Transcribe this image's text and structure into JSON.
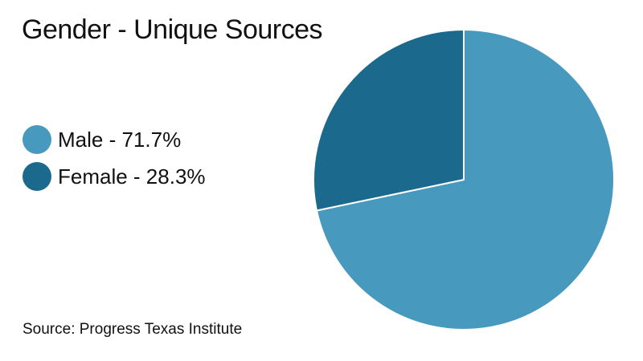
{
  "chart_data": {
    "type": "pie",
    "title": "Gender - Unique Sources",
    "slices": [
      {
        "label": "Male - 71.7%",
        "category": "Male",
        "value": 71.7,
        "color": "#4799bd"
      },
      {
        "label": "Female - 28.3%",
        "category": "Female",
        "value": 28.3,
        "color": "#1b6a8d"
      }
    ],
    "legend_placement": "left",
    "start_angle": "top, clockwise"
  },
  "source": "Source: Progress Texas Institute"
}
